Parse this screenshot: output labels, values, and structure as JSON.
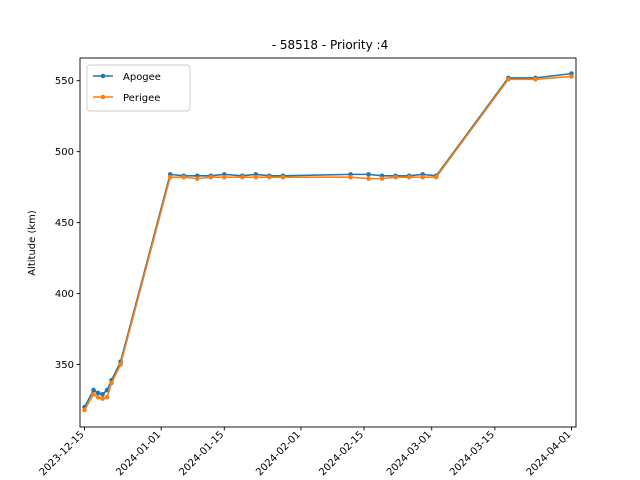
{
  "chart_data": {
    "type": "line",
    "title": "- 58518 - Priority :4",
    "xlabel": "",
    "ylabel": "Altitude (km)",
    "x_axis_type": "date",
    "xlim": [
      "2023-12-14",
      "2024-04-02"
    ],
    "ylim": [
      306,
      566
    ],
    "x_ticks": [
      "2023-12-15",
      "2024-01-01",
      "2024-01-15",
      "2024-02-01",
      "2024-02-15",
      "2024-03-01",
      "2024-03-15",
      "2024-04-01"
    ],
    "y_ticks": [
      350,
      400,
      450,
      500,
      550
    ],
    "grid": false,
    "legend_position": "upper-left",
    "series": [
      {
        "name": "Apogee",
        "color": "#1f77b4",
        "marker": "circle",
        "points": [
          {
            "x": "2023-12-15",
            "y": 320
          },
          {
            "x": "2023-12-17",
            "y": 332
          },
          {
            "x": "2023-12-18",
            "y": 330
          },
          {
            "x": "2023-12-19",
            "y": 329
          },
          {
            "x": "2023-12-20",
            "y": 332
          },
          {
            "x": "2023-12-21",
            "y": 339
          },
          {
            "x": "2023-12-23",
            "y": 352
          },
          {
            "x": "2024-01-03",
            "y": 484
          },
          {
            "x": "2024-01-06",
            "y": 483
          },
          {
            "x": "2024-01-09",
            "y": 483
          },
          {
            "x": "2024-01-12",
            "y": 483
          },
          {
            "x": "2024-01-15",
            "y": 484
          },
          {
            "x": "2024-01-19",
            "y": 483
          },
          {
            "x": "2024-01-22",
            "y": 484
          },
          {
            "x": "2024-01-25",
            "y": 483
          },
          {
            "x": "2024-01-28",
            "y": 483
          },
          {
            "x": "2024-02-12",
            "y": 484
          },
          {
            "x": "2024-02-16",
            "y": 484
          },
          {
            "x": "2024-02-19",
            "y": 483
          },
          {
            "x": "2024-02-22",
            "y": 483
          },
          {
            "x": "2024-02-25",
            "y": 483
          },
          {
            "x": "2024-02-28",
            "y": 484
          },
          {
            "x": "2024-03-02",
            "y": 483
          },
          {
            "x": "2024-03-18",
            "y": 552
          },
          {
            "x": "2024-03-24",
            "y": 552
          },
          {
            "x": "2024-04-01",
            "y": 555
          }
        ]
      },
      {
        "name": "Perigee",
        "color": "#ff7f0e",
        "marker": "circle",
        "points": [
          {
            "x": "2023-12-15",
            "y": 318
          },
          {
            "x": "2023-12-17",
            "y": 329
          },
          {
            "x": "2023-12-18",
            "y": 327
          },
          {
            "x": "2023-12-19",
            "y": 326
          },
          {
            "x": "2023-12-20",
            "y": 327
          },
          {
            "x": "2023-12-21",
            "y": 337
          },
          {
            "x": "2023-12-23",
            "y": 350
          },
          {
            "x": "2024-01-03",
            "y": 482
          },
          {
            "x": "2024-01-06",
            "y": 482
          },
          {
            "x": "2024-01-09",
            "y": 481
          },
          {
            "x": "2024-01-12",
            "y": 482
          },
          {
            "x": "2024-01-15",
            "y": 482
          },
          {
            "x": "2024-01-19",
            "y": 482
          },
          {
            "x": "2024-01-22",
            "y": 482
          },
          {
            "x": "2024-01-25",
            "y": 482
          },
          {
            "x": "2024-01-28",
            "y": 482
          },
          {
            "x": "2024-02-12",
            "y": 482
          },
          {
            "x": "2024-02-16",
            "y": 481
          },
          {
            "x": "2024-02-19",
            "y": 481
          },
          {
            "x": "2024-02-22",
            "y": 482
          },
          {
            "x": "2024-02-25",
            "y": 482
          },
          {
            "x": "2024-02-28",
            "y": 482
          },
          {
            "x": "2024-03-02",
            "y": 482
          },
          {
            "x": "2024-03-18",
            "y": 551
          },
          {
            "x": "2024-03-24",
            "y": 551
          },
          {
            "x": "2024-04-01",
            "y": 553
          }
        ]
      }
    ]
  }
}
